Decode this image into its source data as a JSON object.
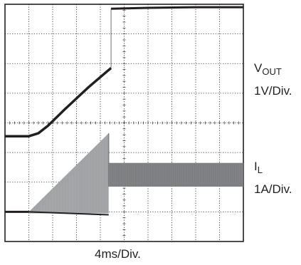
{
  "chart_data": {
    "type": "line",
    "grid": true,
    "x_divisions": 10,
    "y_divisions": 8,
    "xlabel": "4ms/Div.",
    "series": [
      {
        "name_main": "V",
        "name_sub": "OUT",
        "scale": "1V/Div.",
        "color": "#231f20",
        "x": [
          0,
          1.0,
          1.4,
          1.8,
          2.5,
          3.5,
          4.3,
          4.45,
          4.45,
          6.0,
          8.0,
          9.0,
          10.0
        ],
        "y": [
          3.55,
          3.55,
          3.65,
          3.9,
          4.45,
          5.2,
          5.75,
          5.85,
          7.85,
          7.88,
          7.9,
          7.9,
          7.9
        ]
      },
      {
        "name_main": "I",
        "name_sub": "L",
        "scale": "1A/Div.",
        "color": "#231f20",
        "fill_color": "#a7a9ac",
        "band_color": "#808285",
        "x_start": 1.0,
        "x_peak": 4.35,
        "x_end": 10.0,
        "baseline_y": 1.0,
        "peak_y": 3.65,
        "band_low": 1.85,
        "band_high": 2.65
      }
    ]
  }
}
